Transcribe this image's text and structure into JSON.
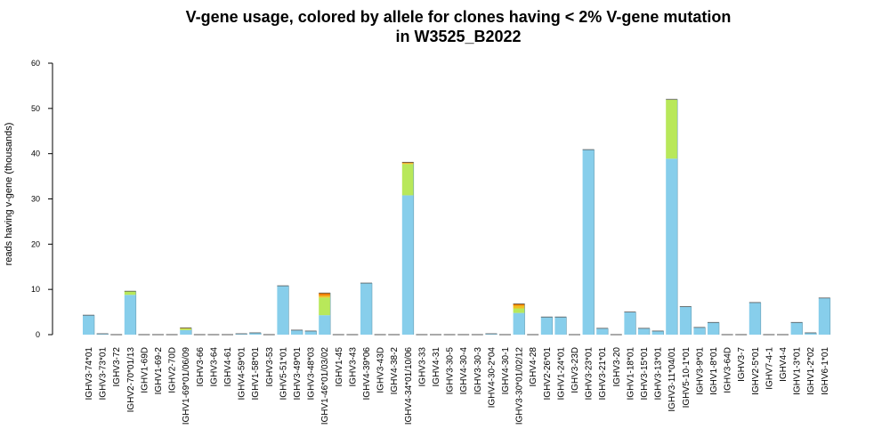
{
  "chart_data": {
    "type": "bar",
    "stacked": true,
    "title_lines": [
      "V-gene usage, colored by allele for clones having < 2% V-gene mutation",
      "in W3525_B2022"
    ],
    "xlabel": "",
    "ylabel": "reads having v-gene (thousands)",
    "ylim": [
      0,
      60
    ],
    "yticks": [
      0,
      10,
      20,
      30,
      40,
      50,
      60
    ],
    "grid": false,
    "legend": "none",
    "colors": [
      "#87ceeb",
      "#b8e85a",
      "#f0c020",
      "#f08000"
    ],
    "categories": [
      "IGHV3-74*01",
      "IGHV3-73*01",
      "IGHV3-72",
      "IGHV2-70*01/13",
      "IGHV1-69D",
      "IGHV1-69-2",
      "IGHV2-70D",
      "IGHV1-69*01/06/09",
      "IGHV3-66",
      "IGHV3-64",
      "IGHV4-61",
      "IGHV4-59*01",
      "IGHV1-58*01",
      "IGHV3-53",
      "IGHV5-51*01",
      "IGHV3-49*01",
      "IGHV3-48*03",
      "IGHV1-46*01/03/02",
      "IGHV1-45",
      "IGHV3-43",
      "IGHV4-39*06",
      "IGHV3-43D",
      "IGHV4-38-2",
      "IGHV4-34*01/10/06",
      "IGHV3-33",
      "IGHV4-31",
      "IGHV3-30-5",
      "IGHV4-30-4",
      "IGHV3-30-3",
      "IGHV4-30-2*04",
      "IGHV4-30-1",
      "IGHV3-30*01/02/12",
      "IGHV4-28",
      "IGHV2-26*01",
      "IGHV1-24*01",
      "IGHV3-23D",
      "IGHV3-23*01",
      "IGHV3-21*01",
      "IGHV3-20",
      "IGHV1-18*01",
      "IGHV3-15*01",
      "IGHV3-13*01",
      "IGHV3-11*04/01",
      "IGHV5-10-1*01",
      "IGHV3-9*01",
      "IGHV1-8*01",
      "IGHV3-64D",
      "IGHV3-7",
      "IGHV2-5*01",
      "IGHV7-4-1",
      "IGHV4-4",
      "IGHV1-3*01",
      "IGHV1-2*02",
      "IGHV6-1*01"
    ],
    "bars": [
      [
        4.3
      ],
      [
        0.2
      ],
      [
        0
      ],
      [
        8.8,
        0.8
      ],
      [
        0
      ],
      [
        0
      ],
      [
        0
      ],
      [
        1.0,
        0.3,
        0.2
      ],
      [
        0
      ],
      [
        0
      ],
      [
        0
      ],
      [
        0.2
      ],
      [
        0.4
      ],
      [
        0
      ],
      [
        10.8
      ],
      [
        1.0
      ],
      [
        0.8
      ],
      [
        4.3,
        3.9,
        0.4,
        0.6
      ],
      [
        0
      ],
      [
        0
      ],
      [
        11.4
      ],
      [
        0
      ],
      [
        0
      ],
      [
        30.8,
        6.9,
        0.2,
        0.2
      ],
      [
        0
      ],
      [
        0
      ],
      [
        0
      ],
      [
        0
      ],
      [
        0
      ],
      [
        0.2
      ],
      [
        0
      ],
      [
        4.8,
        1.0,
        0.6,
        0.4
      ],
      [
        0
      ],
      [
        3.9
      ],
      [
        3.9
      ],
      [
        0
      ],
      [
        40.9
      ],
      [
        1.4
      ],
      [
        0
      ],
      [
        5.0
      ],
      [
        1.4
      ],
      [
        0.8
      ],
      [
        38.9,
        13.1
      ],
      [
        6.2
      ],
      [
        1.6
      ],
      [
        2.7
      ],
      [
        0
      ],
      [
        0
      ],
      [
        7.1
      ],
      [
        0
      ],
      [
        0
      ],
      [
        2.7
      ],
      [
        0.4
      ],
      [
        8.1
      ]
    ]
  }
}
